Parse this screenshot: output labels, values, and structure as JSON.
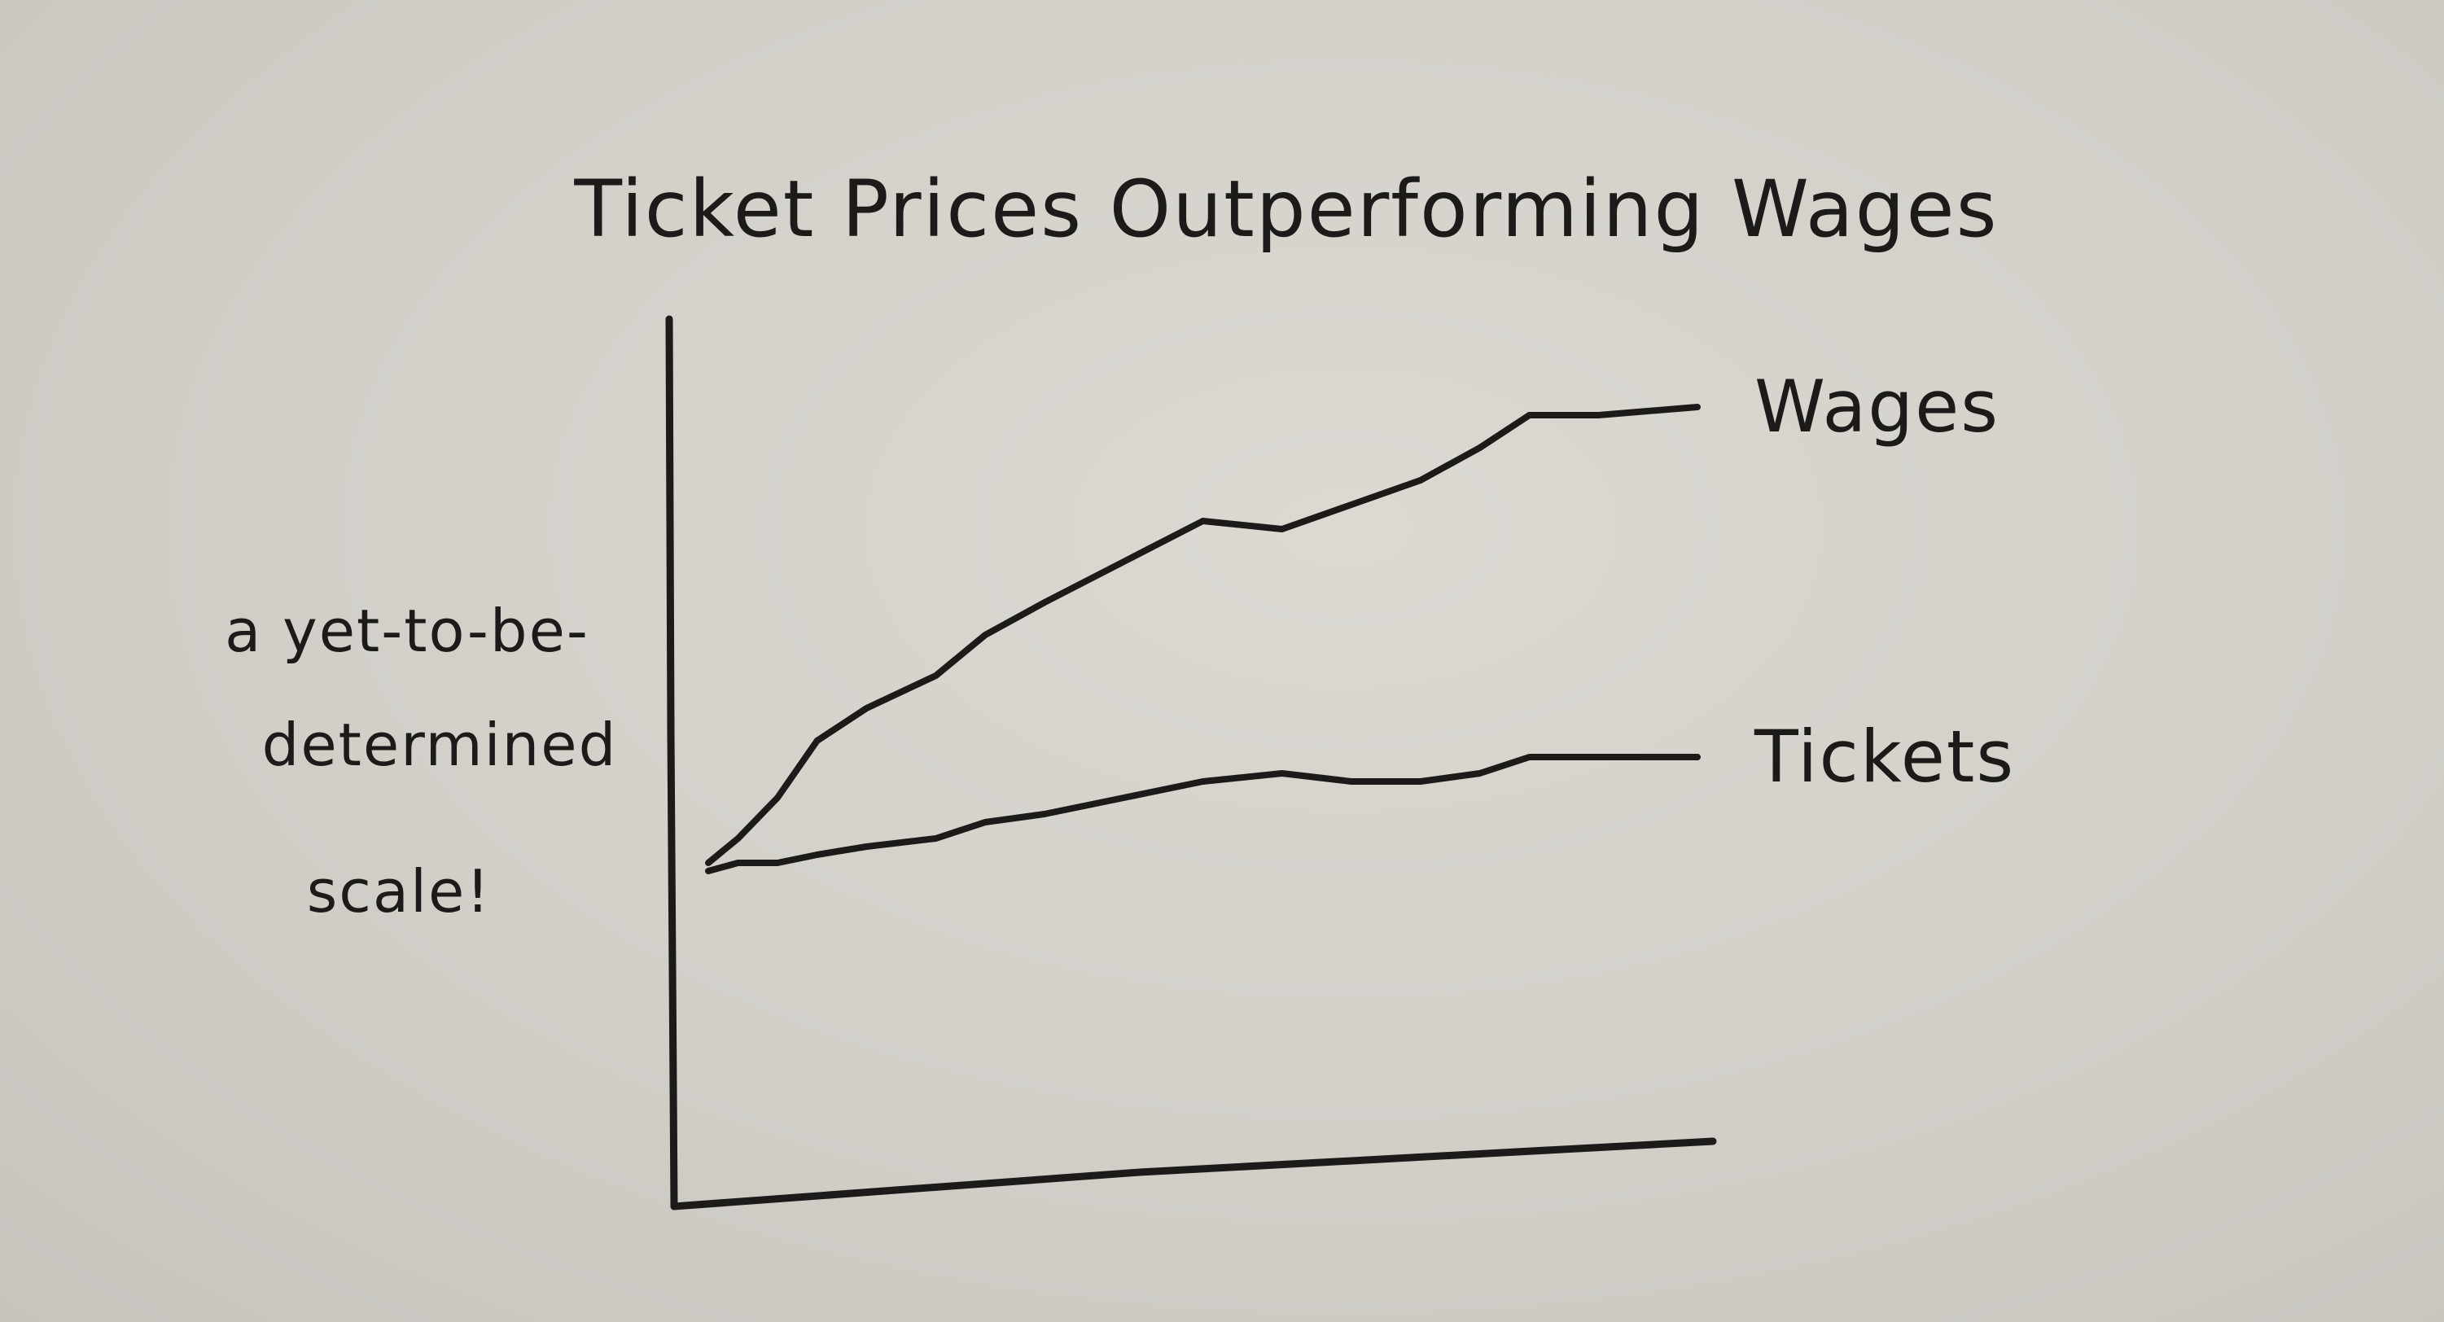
{
  "chart_data": {
    "type": "line",
    "title": "Ticket Prices Outperforming Wages",
    "ylabel_lines": [
      "a yet-to-be-",
      "determined",
      "scale!"
    ],
    "xlabel": "",
    "grid": false,
    "legend": "labels at line ends",
    "ylim": [
      0,
      10
    ],
    "xlim": [
      0,
      10
    ],
    "x": [
      0,
      0.3,
      0.7,
      1.1,
      1.6,
      2.3,
      2.8,
      3.4,
      4.2,
      5.0,
      5.8,
      6.5,
      7.2,
      7.8,
      8.3,
      9.0,
      10.0
    ],
    "series": [
      {
        "name": "Wages",
        "values": [
          3.8,
          4.1,
          4.6,
          5.3,
          5.7,
          6.1,
          6.6,
          7.0,
          7.5,
          8.0,
          7.9,
          8.2,
          8.5,
          8.9,
          9.3,
          9.3,
          9.4
        ]
      },
      {
        "name": "Tickets",
        "values": [
          3.7,
          3.8,
          3.8,
          3.9,
          4.0,
          4.1,
          4.3,
          4.4,
          4.6,
          4.8,
          4.9,
          4.8,
          4.8,
          4.9,
          5.1,
          5.1,
          5.1
        ]
      }
    ],
    "colors": {
      "ink": "#1c1b1a",
      "paper": "#d4d1cb"
    }
  }
}
